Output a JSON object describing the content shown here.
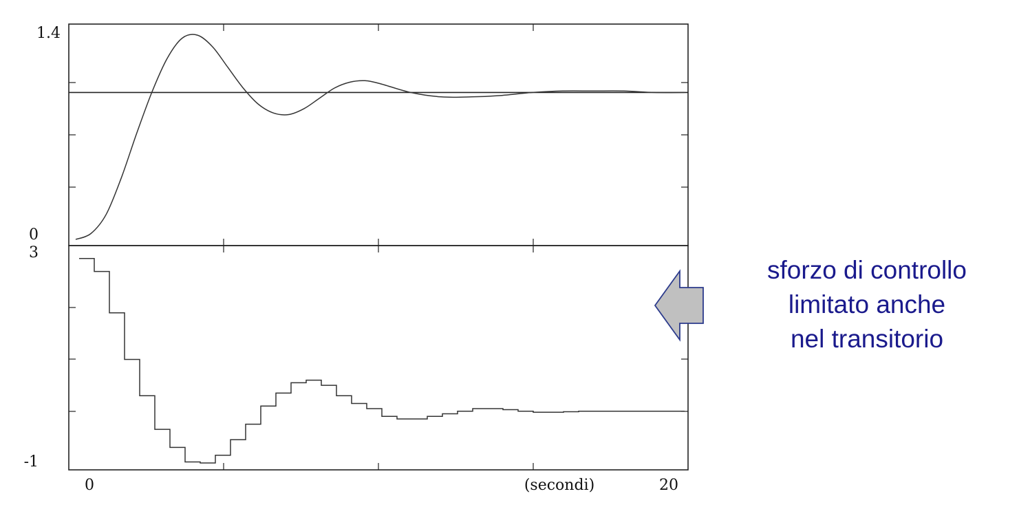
{
  "chart_data": [
    {
      "type": "line",
      "panel": "top",
      "title": "",
      "xlabel": "",
      "ylabel": "",
      "xlim": [
        0,
        20
      ],
      "ylim": [
        0,
        1.4
      ],
      "ytick_labels": [
        "1.4",
        "0"
      ],
      "reference_line": {
        "y": 1.0
      },
      "series": [
        {
          "x": [
            0,
            0.5,
            1,
            1.5,
            2,
            2.5,
            3,
            3.5,
            4,
            4.5,
            5,
            5.5,
            6,
            6.5,
            7,
            7.5,
            8,
            8.5,
            9,
            9.5,
            10,
            11,
            12,
            13,
            14,
            15,
            16,
            17,
            18,
            19,
            20
          ],
          "y": [
            0.0,
            0.04,
            0.17,
            0.42,
            0.72,
            1.0,
            1.23,
            1.37,
            1.39,
            1.31,
            1.17,
            1.03,
            0.92,
            0.86,
            0.85,
            0.89,
            0.96,
            1.03,
            1.07,
            1.08,
            1.06,
            1.0,
            0.97,
            0.97,
            0.98,
            1.0,
            1.01,
            1.01,
            1.01,
            1.0,
            1.0
          ]
        }
      ]
    },
    {
      "type": "line",
      "panel": "bottom",
      "step": true,
      "title": "",
      "xlabel": "(secondi)",
      "ylabel": "",
      "xlim": [
        0,
        20
      ],
      "ylim": [
        -1,
        3
      ],
      "ytick_labels": [
        "3",
        "-1"
      ],
      "xtick_labels": [
        "0",
        "20"
      ],
      "series": [
        {
          "x": [
            0,
            0.5,
            1,
            1.5,
            2,
            2.5,
            3,
            3.5,
            4,
            4.5,
            5,
            5.5,
            6,
            6.5,
            7,
            7.5,
            8,
            8.5,
            9,
            9.5,
            10,
            10.5,
            11,
            11.5,
            12,
            12.5,
            13,
            13.5,
            14,
            14.5,
            15,
            15.5,
            16,
            16.5,
            17,
            17.5,
            18,
            18.5,
            19,
            19.5,
            20
          ],
          "y": [
            2.95,
            2.7,
            1.9,
            1.0,
            0.3,
            -0.35,
            -0.7,
            -0.98,
            -1.0,
            -0.85,
            -0.55,
            -0.25,
            0.1,
            0.35,
            0.55,
            0.6,
            0.5,
            0.3,
            0.15,
            0.05,
            -0.1,
            -0.15,
            -0.15,
            -0.1,
            -0.05,
            0.0,
            0.05,
            0.05,
            0.03,
            0.0,
            -0.02,
            -0.02,
            -0.01,
            0.0,
            0.0,
            0.0,
            0.0,
            0.0,
            0.0,
            0.0,
            0.0
          ]
        }
      ]
    }
  ],
  "annotation": {
    "lines": [
      "sforzo di controllo",
      "limitato anche",
      "nel transitorio"
    ],
    "color": "#1a1a8c"
  },
  "arrow": {
    "direction": "left",
    "fill": "#c0c0c0",
    "stroke": "#2b3a8c"
  }
}
